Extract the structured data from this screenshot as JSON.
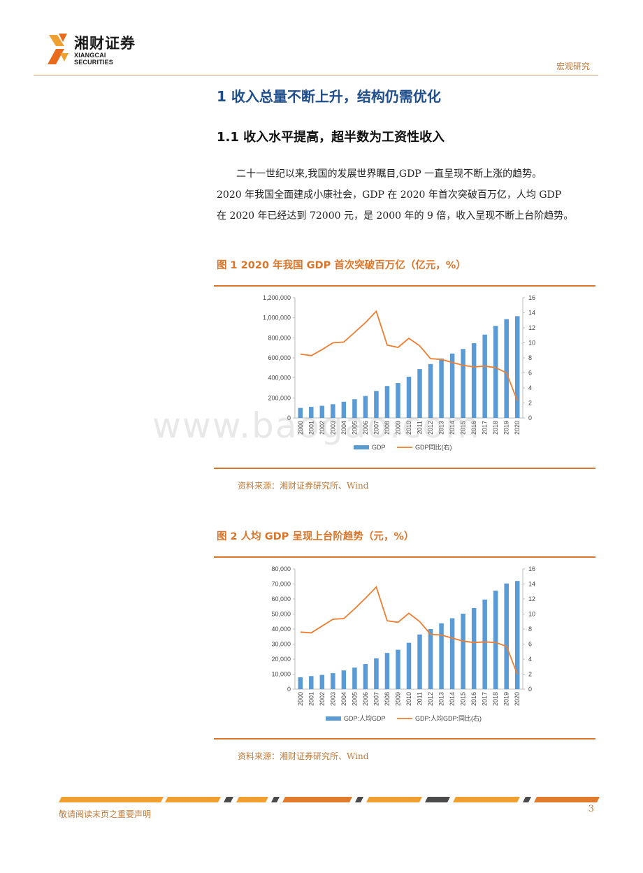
{
  "header": {
    "logo_cn": "湘财证券",
    "logo_en": "XIANGCAI SECURITIES",
    "tag": "宏观研究"
  },
  "section": {
    "h1": "1 收入总量不断上升，结构仍需优化",
    "h2": "1.1 收入水平提高，超半数为工资性收入",
    "para_lines": [
      "二十一世纪以来,我国的发展世界瞩目,GDP 一直呈现不断上涨的趋势。",
      "2020 年我国全面建成小康社会，GDP 在 2020 年首次突破百万亿，人均 GDP",
      "在 2020 年已经达到 72000 元，是 2000 年的 9 倍，收入呈现不断上台阶趋势。"
    ]
  },
  "figure1": {
    "title": "图 1 2020 年我国 GDP 首次突破百万亿（亿元，%）",
    "source": "资料来源：湘财证券研究所、Wind"
  },
  "figure2": {
    "title": "图 2  人均 GDP 呈现上台阶趋势（元，%）",
    "source": "资料来源：湘财证券研究所、Wind"
  },
  "watermark": "www.baogao.com",
  "footer": {
    "left": "敬请阅读末页之重要声明",
    "page": "3"
  },
  "colors": {
    "bar": "#5b9bd5",
    "line": "#ed7d31",
    "accent": "#d9762b",
    "heading": "#1f4e8c"
  },
  "chart_data": [
    {
      "type": "bar+line",
      "categories": [
        "2000",
        "2001",
        "2002",
        "2003",
        "2004",
        "2005",
        "2006",
        "2007",
        "2008",
        "2009",
        "2010",
        "2011",
        "2012",
        "2013",
        "2014",
        "2015",
        "2016",
        "2017",
        "2018",
        "2019",
        "2020"
      ],
      "series": [
        {
          "name": "GDP",
          "type": "bar",
          "axis": "left",
          "values": [
            100280,
            110863,
            121717,
            137422,
            161840,
            187319,
            219439,
            270092,
            319245,
            348518,
            412119,
            487940,
            538580,
            592963,
            643563,
            688858,
            746395,
            832036,
            919281,
            986515,
            1015986
          ]
        },
        {
          "name": "GDP同比(右)",
          "type": "line",
          "axis": "right",
          "values": [
            8.5,
            8.3,
            9.1,
            10.0,
            10.1,
            11.4,
            12.7,
            14.2,
            9.7,
            9.4,
            10.6,
            9.6,
            7.9,
            7.8,
            7.4,
            7.0,
            6.8,
            6.9,
            6.7,
            6.0,
            2.3
          ]
        }
      ],
      "y_left": {
        "min": 0,
        "max": 1200000,
        "step": 200000,
        "ticks": [
          "0",
          "200,000",
          "400,000",
          "600,000",
          "800,000",
          "1,000,000",
          "1,200,000"
        ]
      },
      "y_right": {
        "min": 0,
        "max": 16,
        "step": 2,
        "ticks": [
          "0",
          "2",
          "4",
          "6",
          "8",
          "10",
          "12",
          "14",
          "16"
        ]
      },
      "legend": "bottom",
      "grid": false
    },
    {
      "type": "bar+line",
      "categories": [
        "2000",
        "2001",
        "2002",
        "2003",
        "2004",
        "2005",
        "2006",
        "2007",
        "2008",
        "2009",
        "2010",
        "2011",
        "2012",
        "2013",
        "2014",
        "2015",
        "2016",
        "2017",
        "2018",
        "2019",
        "2020"
      ],
      "series": [
        {
          "name": "GDP:人均GDP",
          "type": "bar",
          "axis": "left",
          "values": [
            7942,
            8717,
            9506,
            10666,
            12487,
            14368,
            16738,
            20505,
            24121,
            26222,
            30876,
            36403,
            40007,
            43852,
            47203,
            50251,
            53980,
            59660,
            65534,
            70328,
            72000
          ]
        },
        {
          "name": "GDP:人均GDP:同比(右)",
          "type": "line",
          "axis": "right",
          "values": [
            7.6,
            7.5,
            8.4,
            9.3,
            9.4,
            10.7,
            12.1,
            13.6,
            9.1,
            8.9,
            10.1,
            9.0,
            7.3,
            7.2,
            6.8,
            6.4,
            6.2,
            6.3,
            6.2,
            5.7,
            2.0
          ]
        }
      ],
      "y_left": {
        "min": 0,
        "max": 80000,
        "step": 10000,
        "ticks": [
          "0",
          "10,000",
          "20,000",
          "30,000",
          "40,000",
          "50,000",
          "60,000",
          "70,000",
          "80,000"
        ]
      },
      "y_right": {
        "min": 0,
        "max": 16,
        "step": 2,
        "ticks": [
          "0",
          "2",
          "4",
          "6",
          "8",
          "10",
          "12",
          "14",
          "16"
        ]
      },
      "legend": "bottom",
      "grid": false
    }
  ]
}
